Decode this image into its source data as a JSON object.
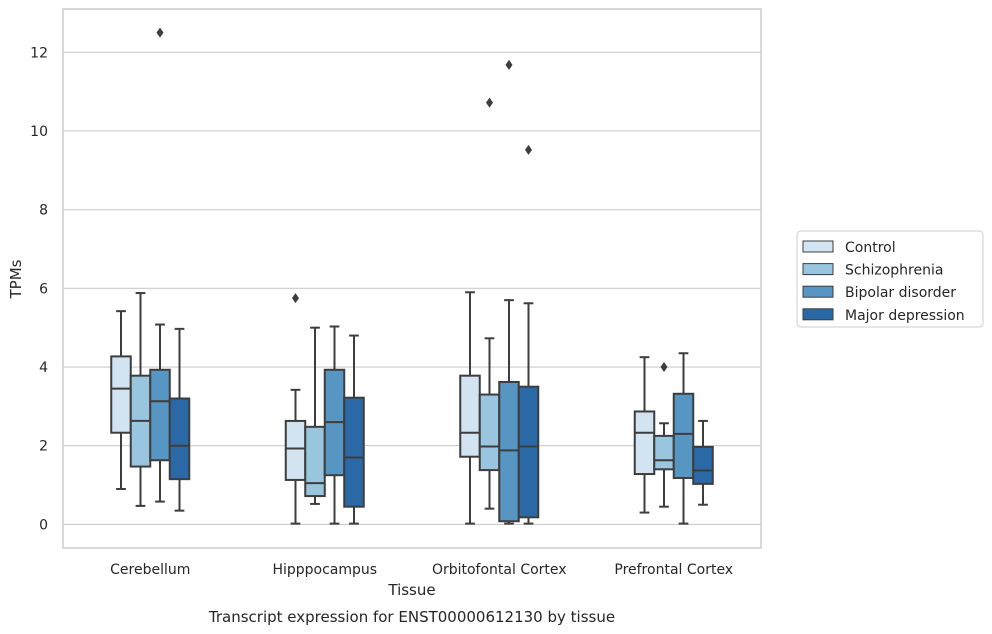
{
  "chart_data": {
    "type": "box",
    "caption": "Transcript expression for ENST00000612130 by tissue",
    "xlabel": "Tissue",
    "ylabel": "TPMs",
    "ylim": [
      -0.6,
      13.1
    ],
    "yticks": [
      0,
      2,
      4,
      6,
      8,
      10,
      12
    ],
    "grid": "horizontal",
    "legend_position": "right",
    "categories": [
      "Cerebellum",
      "Hipppocampus",
      "Orbitofontal Cortex",
      "Prefrontal Cortex"
    ],
    "series": [
      {
        "name": "Control",
        "color": "#d2e3f2",
        "boxes": [
          {
            "whislo": 0.9,
            "q1": 2.33,
            "median": 3.45,
            "q3": 4.27,
            "whishi": 5.42,
            "fliers": []
          },
          {
            "whislo": 0.02,
            "q1": 1.13,
            "median": 1.93,
            "q3": 2.63,
            "whishi": 3.42,
            "fliers": [
              5.75
            ]
          },
          {
            "whislo": 0.02,
            "q1": 1.72,
            "median": 2.33,
            "q3": 3.78,
            "whishi": 5.9,
            "fliers": []
          },
          {
            "whislo": 0.3,
            "q1": 1.28,
            "median": 2.33,
            "q3": 2.87,
            "whishi": 4.25,
            "fliers": []
          }
        ]
      },
      {
        "name": "Schizophrenia",
        "color": "#9ac5df",
        "boxes": [
          {
            "whislo": 0.47,
            "q1": 1.47,
            "median": 2.63,
            "q3": 3.78,
            "whishi": 5.88,
            "fliers": []
          },
          {
            "whislo": 0.52,
            "q1": 0.72,
            "median": 1.05,
            "q3": 2.48,
            "whishi": 5.0,
            "fliers": []
          },
          {
            "whislo": 0.4,
            "q1": 1.38,
            "median": 1.98,
            "q3": 3.3,
            "whishi": 4.73,
            "fliers": [
              10.72
            ]
          },
          {
            "whislo": 0.45,
            "q1": 1.4,
            "median": 1.63,
            "q3": 2.25,
            "whishi": 2.57,
            "fliers": [
              4.0
            ]
          }
        ]
      },
      {
        "name": "Bipolar disorder",
        "color": "#5795c3",
        "boxes": [
          {
            "whislo": 0.58,
            "q1": 1.63,
            "median": 3.13,
            "q3": 3.93,
            "whishi": 5.08,
            "fliers": [
              12.5
            ]
          },
          {
            "whislo": 0.02,
            "q1": 1.25,
            "median": 2.6,
            "q3": 3.93,
            "whishi": 5.03,
            "fliers": []
          },
          {
            "whislo": 0.02,
            "q1": 0.08,
            "median": 1.88,
            "q3": 3.62,
            "whishi": 5.7,
            "fliers": [
              11.68
            ]
          },
          {
            "whislo": 0.02,
            "q1": 1.18,
            "median": 2.3,
            "q3": 3.32,
            "whishi": 4.35,
            "fliers": []
          }
        ]
      },
      {
        "name": "Major depression",
        "color": "#2a69a6",
        "boxes": [
          {
            "whislo": 0.35,
            "q1": 1.15,
            "median": 2.0,
            "q3": 3.2,
            "whishi": 4.97,
            "fliers": []
          },
          {
            "whislo": 0.02,
            "q1": 0.45,
            "median": 1.7,
            "q3": 3.22,
            "whishi": 4.8,
            "fliers": []
          },
          {
            "whislo": 0.02,
            "q1": 0.18,
            "median": 1.98,
            "q3": 3.5,
            "whishi": 5.62,
            "fliers": [
              9.52
            ]
          },
          {
            "whislo": 0.5,
            "q1": 1.03,
            "median": 1.37,
            "q3": 1.97,
            "whishi": 2.63,
            "fliers": []
          }
        ]
      }
    ]
  }
}
